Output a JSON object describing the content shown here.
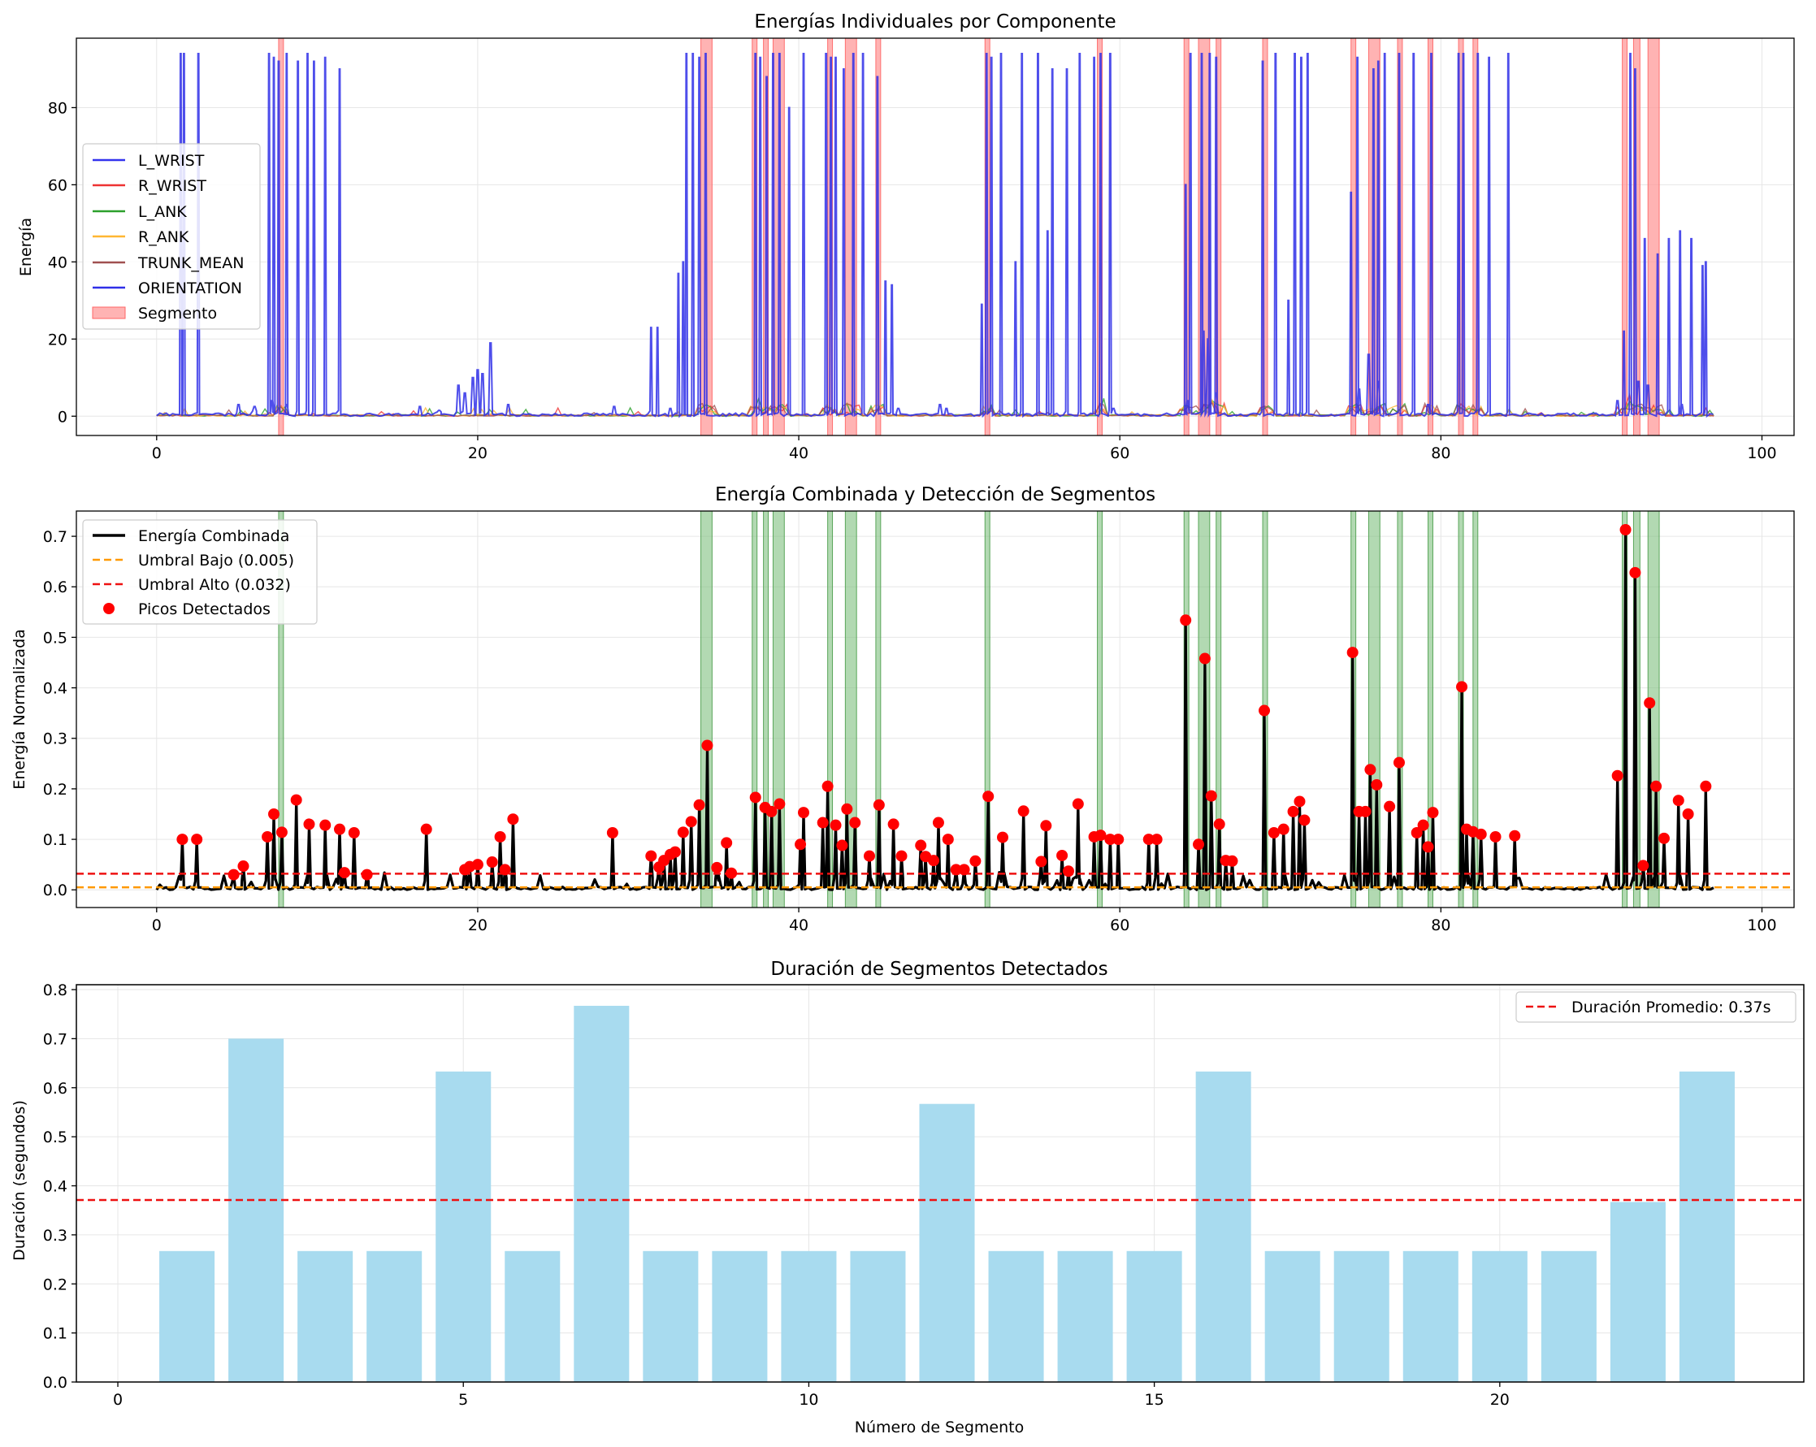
{
  "chart_data": [
    {
      "type": "line",
      "title": "Energías Individuales por Componente",
      "xlabel": "",
      "ylabel": "Energía",
      "xlim": [
        -5,
        102
      ],
      "ylim": [
        -5,
        98
      ],
      "xticks": [
        0,
        20,
        40,
        60,
        80,
        100
      ],
      "yticks": [
        0,
        20,
        40,
        60,
        80
      ],
      "grid": true,
      "legend_position": "center-left",
      "colors": {
        "L_WRIST": "#3333ee",
        "R_WRIST": "#ee3333",
        "L_ANK": "#2ca02c",
        "R_ANK": "#ffb733",
        "TRUNK_MEAN": "#a05050",
        "ORIENTATION": "#2f2fe8",
        "Segmento": "#ff9999"
      },
      "legend": [
        "L_WRIST",
        "R_WRIST",
        "L_ANK",
        "R_ANK",
        "TRUNK_MEAN",
        "ORIENTATION",
        "Segmento"
      ],
      "spikes": [
        [
          1.5,
          94
        ],
        [
          1.7,
          94
        ],
        [
          2.6,
          94
        ],
        [
          7.0,
          94
        ],
        [
          7.3,
          93
        ],
        [
          7.6,
          92
        ],
        [
          8.1,
          94
        ],
        [
          8.8,
          92
        ],
        [
          9.4,
          94
        ],
        [
          9.8,
          92
        ],
        [
          10.5,
          93
        ],
        [
          11.4,
          90
        ],
        [
          30.8,
          23
        ],
        [
          31.2,
          23
        ],
        [
          32.5,
          37
        ],
        [
          32.8,
          40
        ],
        [
          33.0,
          94
        ],
        [
          33.4,
          94
        ],
        [
          33.8,
          93
        ],
        [
          34.2,
          94
        ],
        [
          37.3,
          94
        ],
        [
          37.6,
          93
        ],
        [
          38.0,
          88
        ],
        [
          38.4,
          94
        ],
        [
          38.8,
          94
        ],
        [
          39.4,
          80
        ],
        [
          40.3,
          94
        ],
        [
          41.7,
          94
        ],
        [
          42.0,
          93
        ],
        [
          42.3,
          93
        ],
        [
          42.8,
          90
        ],
        [
          43.4,
          94
        ],
        [
          44.0,
          94
        ],
        [
          44.9,
          88
        ],
        [
          45.4,
          35
        ],
        [
          45.8,
          34
        ],
        [
          51.4,
          29
        ],
        [
          51.7,
          94
        ],
        [
          52.0,
          93
        ],
        [
          52.6,
          94
        ],
        [
          53.5,
          40
        ],
        [
          53.9,
          94
        ],
        [
          54.9,
          94
        ],
        [
          55.5,
          48
        ],
        [
          55.8,
          90
        ],
        [
          56.7,
          90
        ],
        [
          57.5,
          94
        ],
        [
          58.4,
          93
        ],
        [
          58.8,
          94
        ],
        [
          59.4,
          94
        ],
        [
          64.1,
          60
        ],
        [
          64.4,
          94
        ],
        [
          65.1,
          94
        ],
        [
          65.6,
          94
        ],
        [
          66.0,
          93
        ],
        [
          68.9,
          92
        ],
        [
          69.7,
          94
        ],
        [
          70.5,
          30
        ],
        [
          70.9,
          94
        ],
        [
          71.3,
          93
        ],
        [
          71.7,
          94
        ],
        [
          74.4,
          58
        ],
        [
          74.8,
          93
        ],
        [
          75.8,
          90
        ],
        [
          76.1,
          92
        ],
        [
          76.5,
          94
        ],
        [
          77.4,
          94
        ],
        [
          78.3,
          94
        ],
        [
          79.4,
          94
        ],
        [
          81.1,
          94
        ],
        [
          81.4,
          94
        ],
        [
          82.3,
          94
        ],
        [
          83.0,
          93
        ],
        [
          84.2,
          94
        ],
        [
          91.4,
          22
        ],
        [
          91.8,
          94
        ],
        [
          92.1,
          90
        ],
        [
          92.7,
          46
        ],
        [
          93.5,
          42
        ],
        [
          94.2,
          46
        ],
        [
          94.9,
          48
        ],
        [
          95.6,
          46
        ],
        [
          96.3,
          39
        ],
        [
          96.5,
          40
        ]
      ],
      "small_bumps": [
        [
          5.1,
          3
        ],
        [
          6.1,
          2.5
        ],
        [
          7.2,
          4
        ],
        [
          8.1,
          3
        ],
        [
          16.4,
          2.5
        ],
        [
          17.6,
          1.5
        ],
        [
          18.8,
          8
        ],
        [
          19.2,
          6
        ],
        [
          19.7,
          10
        ],
        [
          20.0,
          12
        ],
        [
          20.3,
          11
        ],
        [
          20.8,
          19
        ],
        [
          21.9,
          3
        ],
        [
          28.5,
          2.5
        ],
        [
          32.0,
          2
        ],
        [
          46.2,
          2
        ],
        [
          48.8,
          3
        ],
        [
          49.2,
          2
        ],
        [
          59.6,
          2
        ],
        [
          64.2,
          4
        ],
        [
          65.2,
          22
        ],
        [
          65.5,
          20
        ],
        [
          66.0,
          6
        ],
        [
          74.9,
          7
        ],
        [
          75.5,
          16
        ],
        [
          76.1,
          9
        ],
        [
          79.2,
          3
        ],
        [
          91.0,
          4
        ],
        [
          92.3,
          9
        ],
        [
          92.9,
          8
        ],
        [
          95.0,
          3
        ]
      ],
      "segments": [
        [
          7.6,
          7.9
        ],
        [
          33.9,
          34.6
        ],
        [
          37.1,
          37.4
        ],
        [
          37.8,
          38.1
        ],
        [
          38.4,
          39.1
        ],
        [
          41.8,
          42.1
        ],
        [
          42.9,
          43.6
        ],
        [
          44.8,
          45.1
        ],
        [
          51.6,
          51.9
        ],
        [
          58.6,
          58.9
        ],
        [
          64.0,
          64.3
        ],
        [
          64.9,
          65.6
        ],
        [
          66.0,
          66.3
        ],
        [
          68.9,
          69.2
        ],
        [
          74.4,
          74.7
        ],
        [
          75.5,
          76.2
        ],
        [
          77.3,
          77.6
        ],
        [
          79.2,
          79.5
        ],
        [
          81.1,
          81.4
        ],
        [
          82.0,
          82.3
        ],
        [
          91.3,
          91.6
        ],
        [
          92.0,
          92.4
        ],
        [
          92.9,
          93.6
        ]
      ]
    },
    {
      "type": "line",
      "title": "Energía Combinada y Detección de Segmentos",
      "xlabel": "",
      "ylabel": "Energía Normalizada",
      "xlim": [
        -5,
        102
      ],
      "ylim": [
        -0.035,
        0.75
      ],
      "xticks": [
        0,
        20,
        40,
        60,
        80,
        100
      ],
      "yticks": [
        0.0,
        0.1,
        0.2,
        0.3,
        0.4,
        0.5,
        0.6,
        0.7
      ],
      "grid": true,
      "legend_position": "upper-left",
      "legend": [
        "Energía Combinada",
        "Umbral Bajo (0.005)",
        "Umbral Alto (0.032)",
        "Picos Detectados"
      ],
      "colors": {
        "line": "#000000",
        "low": "#ff9900",
        "high": "#ee1111",
        "peaks": "#ff0000",
        "segments": "#7fbf7f"
      },
      "thresholds": {
        "low": 0.005,
        "high": 0.032
      },
      "peaks": [
        [
          1.6,
          0.1
        ],
        [
          2.5,
          0.1
        ],
        [
          4.8,
          0.03
        ],
        [
          5.4,
          0.047
        ],
        [
          6.9,
          0.105
        ],
        [
          7.3,
          0.15
        ],
        [
          7.8,
          0.114
        ],
        [
          8.7,
          0.178
        ],
        [
          9.5,
          0.13
        ],
        [
          10.5,
          0.128
        ],
        [
          11.4,
          0.12
        ],
        [
          11.7,
          0.034
        ],
        [
          12.3,
          0.113
        ],
        [
          13.1,
          0.03
        ],
        [
          16.8,
          0.12
        ],
        [
          19.2,
          0.04
        ],
        [
          19.5,
          0.046
        ],
        [
          20.0,
          0.05
        ],
        [
          20.9,
          0.055
        ],
        [
          21.4,
          0.105
        ],
        [
          21.7,
          0.04
        ],
        [
          22.2,
          0.14
        ],
        [
          28.4,
          0.113
        ],
        [
          30.8,
          0.067
        ],
        [
          31.3,
          0.045
        ],
        [
          31.6,
          0.058
        ],
        [
          32.0,
          0.07
        ],
        [
          32.3,
          0.075
        ],
        [
          32.8,
          0.114
        ],
        [
          33.3,
          0.135
        ],
        [
          33.8,
          0.168
        ],
        [
          34.3,
          0.286
        ],
        [
          34.9,
          0.044
        ],
        [
          35.5,
          0.093
        ],
        [
          35.8,
          0.033
        ],
        [
          37.3,
          0.183
        ],
        [
          37.9,
          0.163
        ],
        [
          38.3,
          0.155
        ],
        [
          38.8,
          0.17
        ],
        [
          40.1,
          0.09
        ],
        [
          40.3,
          0.153
        ],
        [
          41.5,
          0.133
        ],
        [
          41.8,
          0.205
        ],
        [
          42.3,
          0.128
        ],
        [
          42.7,
          0.088
        ],
        [
          43.0,
          0.16
        ],
        [
          43.5,
          0.133
        ],
        [
          44.4,
          0.067
        ],
        [
          45.0,
          0.168
        ],
        [
          45.9,
          0.13
        ],
        [
          46.4,
          0.067
        ],
        [
          47.6,
          0.088
        ],
        [
          47.9,
          0.066
        ],
        [
          48.4,
          0.058
        ],
        [
          48.7,
          0.133
        ],
        [
          49.3,
          0.1
        ],
        [
          49.8,
          0.04
        ],
        [
          50.3,
          0.04
        ],
        [
          51.0,
          0.057
        ],
        [
          51.8,
          0.185
        ],
        [
          52.7,
          0.104
        ],
        [
          54.0,
          0.156
        ],
        [
          55.1,
          0.056
        ],
        [
          55.4,
          0.127
        ],
        [
          56.4,
          0.068
        ],
        [
          56.8,
          0.037
        ],
        [
          57.4,
          0.17
        ],
        [
          58.4,
          0.105
        ],
        [
          58.8,
          0.108
        ],
        [
          59.4,
          0.1
        ],
        [
          59.9,
          0.1
        ],
        [
          61.8,
          0.1
        ],
        [
          62.3,
          0.1
        ],
        [
          64.1,
          0.534
        ],
        [
          64.9,
          0.09
        ],
        [
          65.3,
          0.458
        ],
        [
          65.7,
          0.186
        ],
        [
          66.2,
          0.13
        ],
        [
          66.6,
          0.058
        ],
        [
          67.0,
          0.057
        ],
        [
          69.0,
          0.355
        ],
        [
          69.6,
          0.113
        ],
        [
          70.2,
          0.12
        ],
        [
          70.8,
          0.155
        ],
        [
          71.2,
          0.175
        ],
        [
          71.5,
          0.138
        ],
        [
          74.5,
          0.47
        ],
        [
          74.9,
          0.155
        ],
        [
          75.3,
          0.155
        ],
        [
          75.6,
          0.238
        ],
        [
          76.0,
          0.208
        ],
        [
          76.8,
          0.165
        ],
        [
          77.4,
          0.252
        ],
        [
          78.5,
          0.113
        ],
        [
          78.9,
          0.128
        ],
        [
          79.2,
          0.085
        ],
        [
          79.5,
          0.153
        ],
        [
          81.3,
          0.402
        ],
        [
          81.6,
          0.12
        ],
        [
          82.0,
          0.115
        ],
        [
          82.5,
          0.11
        ],
        [
          83.4,
          0.105
        ],
        [
          84.6,
          0.107
        ],
        [
          91.0,
          0.226
        ],
        [
          91.5,
          0.713
        ],
        [
          92.1,
          0.628
        ],
        [
          92.6,
          0.048
        ],
        [
          93.0,
          0.37
        ],
        [
          93.4,
          0.205
        ],
        [
          93.9,
          0.102
        ],
        [
          94.8,
          0.177
        ],
        [
          95.4,
          0.15
        ],
        [
          96.5,
          0.205
        ]
      ],
      "segments": [
        [
          7.6,
          7.9
        ],
        [
          33.9,
          34.6
        ],
        [
          37.1,
          37.4
        ],
        [
          37.8,
          38.1
        ],
        [
          38.4,
          39.1
        ],
        [
          41.8,
          42.1
        ],
        [
          42.9,
          43.6
        ],
        [
          44.8,
          45.1
        ],
        [
          51.6,
          51.9
        ],
        [
          58.6,
          58.9
        ],
        [
          64.0,
          64.3
        ],
        [
          64.9,
          65.6
        ],
        [
          66.0,
          66.3
        ],
        [
          68.9,
          69.2
        ],
        [
          74.4,
          74.7
        ],
        [
          75.5,
          76.2
        ],
        [
          77.3,
          77.6
        ],
        [
          79.2,
          79.5
        ],
        [
          81.1,
          81.4
        ],
        [
          82.0,
          82.3
        ],
        [
          91.3,
          91.6
        ],
        [
          92.0,
          92.4
        ],
        [
          92.9,
          93.6
        ]
      ]
    },
    {
      "type": "bar",
      "title": "Duración de Segmentos Detectados",
      "xlabel": "Número de Segmento",
      "ylabel": "Duración (segundos)",
      "xlim": [
        -0.6,
        24.4
      ],
      "ylim": [
        0,
        0.81
      ],
      "xticks": [
        0,
        5,
        10,
        15,
        20
      ],
      "yticks": [
        0.0,
        0.1,
        0.2,
        0.3,
        0.4,
        0.5,
        0.6,
        0.7,
        0.8
      ],
      "grid": true,
      "legend_position": "upper-right",
      "legend": [
        "Duración Promedio: 0.37s"
      ],
      "colors": {
        "bars": "#a8dbef",
        "mean": "#ee1111"
      },
      "mean": 0.371,
      "categories": [
        1,
        2,
        3,
        4,
        5,
        6,
        7,
        8,
        9,
        10,
        11,
        12,
        13,
        14,
        15,
        16,
        17,
        18,
        19,
        20,
        21,
        22,
        23
      ],
      "values": [
        0.267,
        0.7,
        0.267,
        0.267,
        0.633,
        0.267,
        0.767,
        0.267,
        0.267,
        0.267,
        0.267,
        0.567,
        0.267,
        0.267,
        0.267,
        0.633,
        0.267,
        0.267,
        0.267,
        0.267,
        0.267,
        0.367,
        0.633
      ]
    }
  ]
}
